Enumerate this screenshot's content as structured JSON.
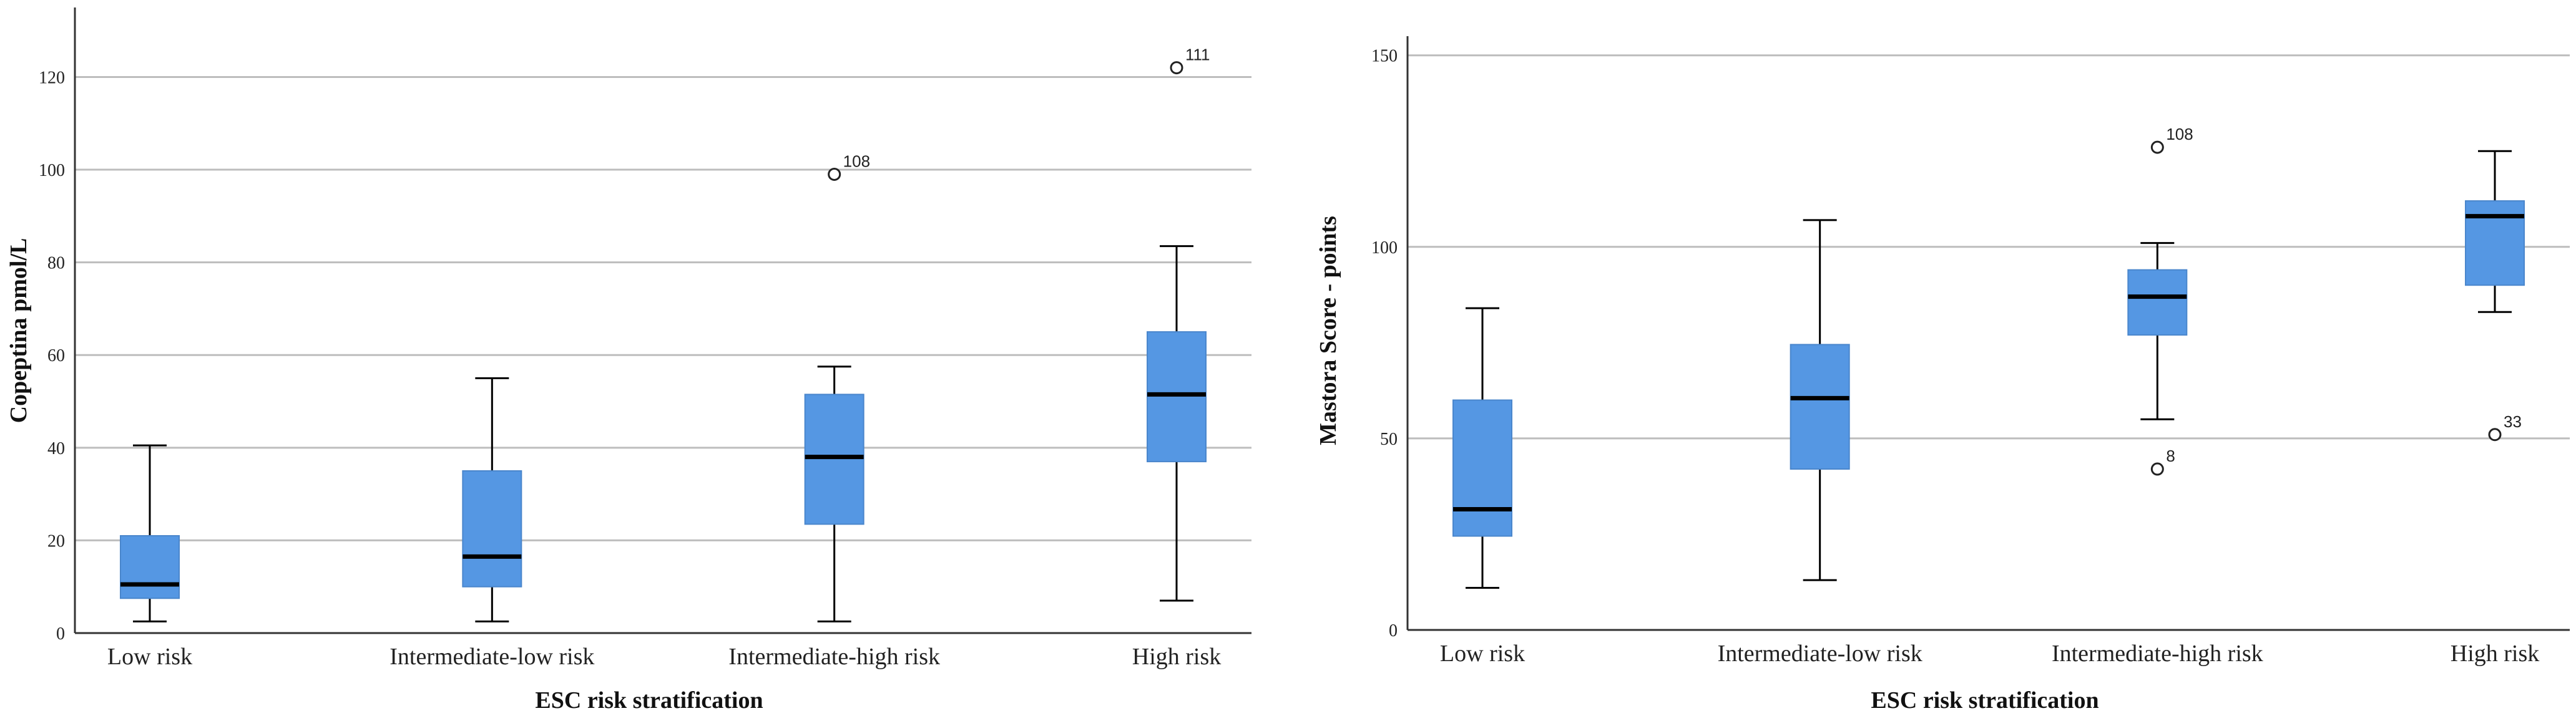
{
  "colors": {
    "box_fill": "#5597E3",
    "box_stroke": "#4a86cc",
    "median": "#000000",
    "gridline": "#bdbdbd",
    "axis": "#333333",
    "whisker": "#000000"
  },
  "chart_data": [
    {
      "type": "box",
      "title": "",
      "xlabel": "ESC risk stratification",
      "ylabel": "Copeptina pmol/L",
      "ylim": [
        0,
        135
      ],
      "yticks": [
        0,
        20,
        40,
        60,
        80,
        100,
        120
      ],
      "grid": true,
      "categories": [
        "Low risk",
        "Intermediate-low risk",
        "Intermediate-high risk",
        "High risk"
      ],
      "boxes": [
        {
          "category": "Low risk",
          "min": 2.5,
          "q1": 7.5,
          "median": 10.5,
          "q3": 21,
          "max": 40.5,
          "outliers": []
        },
        {
          "category": "Intermediate-low risk",
          "min": 2.5,
          "q1": 10,
          "median": 16.5,
          "q3": 35,
          "max": 55,
          "outliers": []
        },
        {
          "category": "Intermediate-high risk",
          "min": 2.5,
          "q1": 23.5,
          "median": 38,
          "q3": 51.5,
          "max": 57.5,
          "outliers": [
            {
              "value": 99,
              "label": "108"
            }
          ]
        },
        {
          "category": "High risk",
          "min": 7,
          "q1": 37,
          "median": 51.5,
          "q3": 65,
          "max": 83.5,
          "outliers": [
            {
              "value": 122,
              "label": "111"
            }
          ]
        }
      ]
    },
    {
      "type": "box",
      "title": "",
      "xlabel": "ESC risk stratification",
      "ylabel": "Mastora Score - points",
      "ylim": [
        0,
        155
      ],
      "yticks": [
        0,
        50,
        100,
        150
      ],
      "grid": true,
      "categories": [
        "Low risk",
        "Intermediate-low risk",
        "Intermediate-high risk",
        "High risk"
      ],
      "boxes": [
        {
          "category": "Low risk",
          "min": 11,
          "q1": 24.5,
          "median": 31.5,
          "q3": 60,
          "max": 84,
          "outliers": []
        },
        {
          "category": "Intermediate-low risk",
          "min": 13,
          "q1": 42,
          "median": 60.5,
          "q3": 74.5,
          "max": 107,
          "outliers": []
        },
        {
          "category": "Intermediate-high risk",
          "min": 55,
          "q1": 77,
          "median": 87,
          "q3": 94,
          "max": 101,
          "outliers": [
            {
              "value": 126,
              "label": "108"
            },
            {
              "value": 42,
              "label": "8"
            }
          ]
        },
        {
          "category": "High risk",
          "min": 83,
          "q1": 90,
          "median": 108,
          "q3": 112,
          "max": 125,
          "outliers": [
            {
              "value": 51,
              "label": "33"
            }
          ]
        }
      ]
    }
  ]
}
